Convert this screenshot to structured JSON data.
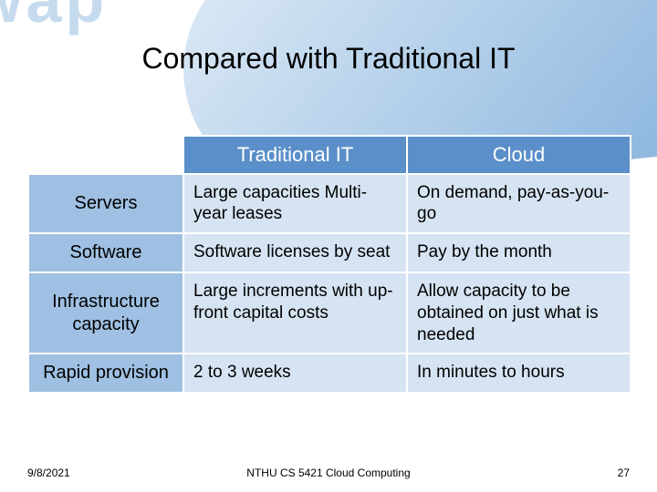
{
  "background": {
    "watermark_text": "wap",
    "watermark_color": "#aecbe7",
    "stripe_gradient_from": "#ddeaf6",
    "stripe_gradient_to": "#6ea3d6"
  },
  "title": {
    "text": "Compared with Traditional IT",
    "color": "#000000",
    "fontsize": 32
  },
  "table": {
    "type": "table",
    "header_bg": "#5a8fc9",
    "header_text_color": "#ffffff",
    "rowhead_bg": "#9fc0e2",
    "cell_bg": "#d6e3f2",
    "border_color": "#ffffff",
    "columns": [
      "",
      "Traditional IT",
      "Cloud"
    ],
    "rows": [
      {
        "label": "Servers",
        "traditional": "Large capacities Multi-year leases",
        "cloud": "On demand, pay-as-you-go"
      },
      {
        "label": "Software",
        "traditional": "Software licenses by seat",
        "cloud": "Pay by the month"
      },
      {
        "label": "Infrastructure capacity",
        "traditional": "Large increments with up-front capital costs",
        "cloud": "Allow capacity to be obtained on just what is needed"
      },
      {
        "label": "Rapid provision",
        "traditional": "2 to 3 weeks",
        "cloud": "In minutes to hours"
      }
    ]
  },
  "footer": {
    "date": "9/8/2021",
    "course": "NTHU CS 5421 Cloud Computing",
    "page": "27"
  }
}
